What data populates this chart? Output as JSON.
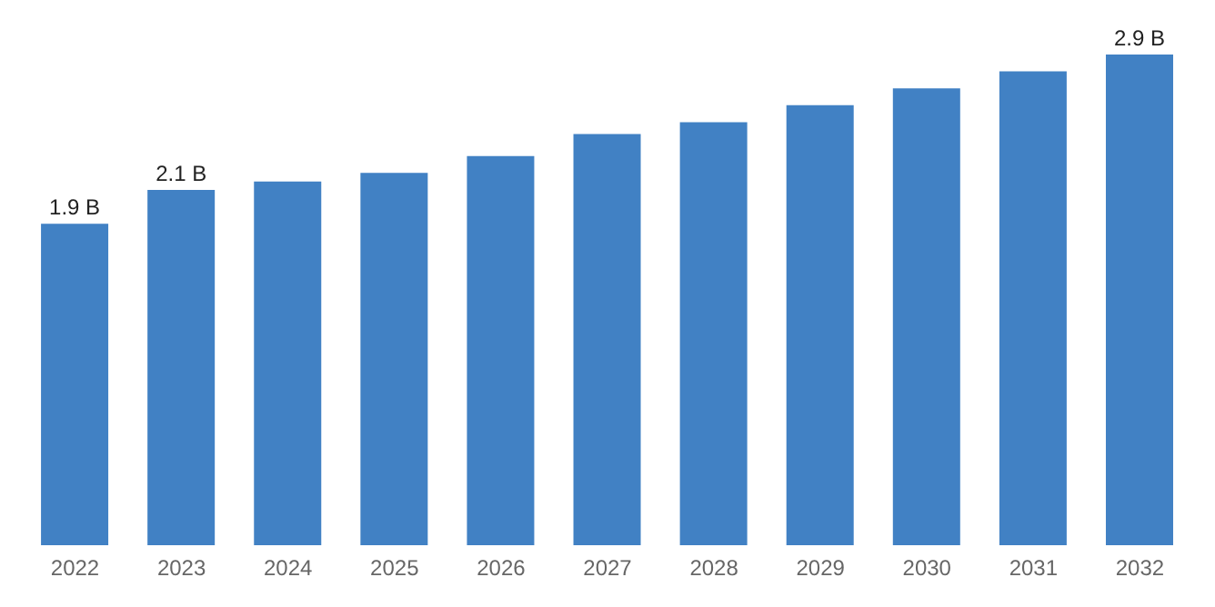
{
  "chart_data": {
    "type": "bar",
    "categories": [
      "2022",
      "2023",
      "2024",
      "2025",
      "2026",
      "2027",
      "2028",
      "2029",
      "2030",
      "2031",
      "2032"
    ],
    "values": [
      1.9,
      2.1,
      2.15,
      2.2,
      2.3,
      2.43,
      2.5,
      2.6,
      2.7,
      2.8,
      2.9
    ],
    "value_labels": [
      "1.9 B",
      "2.1 B",
      null,
      null,
      null,
      null,
      null,
      null,
      null,
      null,
      "2.9 B"
    ],
    "color": "#4181c4",
    "tick_labels": "x"
  }
}
